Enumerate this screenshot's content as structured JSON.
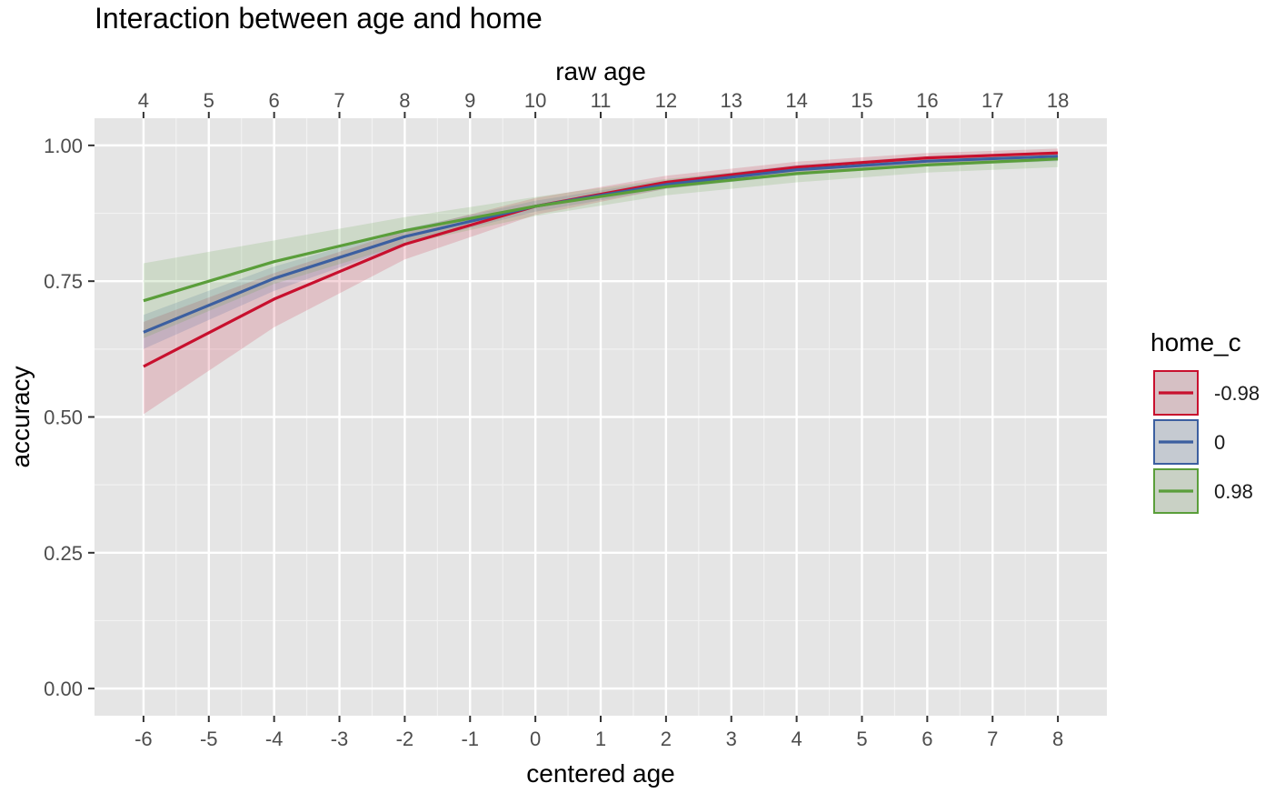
{
  "chart_data": {
    "type": "line",
    "title": "Interaction between age and home",
    "xlabel": "centered age",
    "x2label": "raw age",
    "ylabel": "accuracy",
    "xlim": [
      -6.75,
      8.75
    ],
    "ylim": [
      -0.05,
      1.05
    ],
    "x_ticks": [
      "-6",
      "-5",
      "-4",
      "-3",
      "-2",
      "-1",
      "0",
      "1",
      "2",
      "3",
      "4",
      "5",
      "6",
      "7",
      "8"
    ],
    "x2_ticks": [
      "4",
      "5",
      "6",
      "7",
      "8",
      "9",
      "10",
      "11",
      "12",
      "13",
      "14",
      "15",
      "16",
      "17",
      "18"
    ],
    "y_ticks": [
      "0.00",
      "0.25",
      "0.50",
      "0.75",
      "1.00"
    ],
    "grid": true,
    "legend_title": "home_c",
    "legend_position": "right",
    "x": [
      -6,
      -4,
      -2,
      0,
      2,
      4,
      6,
      8
    ],
    "series": [
      {
        "name": "-0.98",
        "color": "#c8102e",
        "values": [
          0.593,
          0.717,
          0.818,
          0.888,
          0.932,
          0.96,
          0.977,
          0.986
        ],
        "lower": [
          0.505,
          0.665,
          0.79,
          0.872,
          0.92,
          0.948,
          0.966,
          0.975
        ],
        "upper": [
          0.675,
          0.765,
          0.843,
          0.903,
          0.944,
          0.97,
          0.986,
          0.994
        ]
      },
      {
        "name": "0",
        "color": "#3c5fa0",
        "values": [
          0.656,
          0.755,
          0.832,
          0.888,
          0.928,
          0.955,
          0.971,
          0.98
        ],
        "lower": [
          0.625,
          0.732,
          0.818,
          0.878,
          0.92,
          0.945,
          0.962,
          0.971
        ],
        "upper": [
          0.688,
          0.777,
          0.846,
          0.898,
          0.936,
          0.964,
          0.98,
          0.989
        ]
      },
      {
        "name": "0.98",
        "color": "#5a9e3a",
        "values": [
          0.714,
          0.786,
          0.843,
          0.888,
          0.924,
          0.948,
          0.964,
          0.975
        ],
        "lower": [
          0.645,
          0.745,
          0.818,
          0.87,
          0.908,
          0.932,
          0.95,
          0.96
        ],
        "upper": [
          0.783,
          0.825,
          0.868,
          0.905,
          0.938,
          0.962,
          0.978,
          0.988
        ]
      }
    ]
  }
}
